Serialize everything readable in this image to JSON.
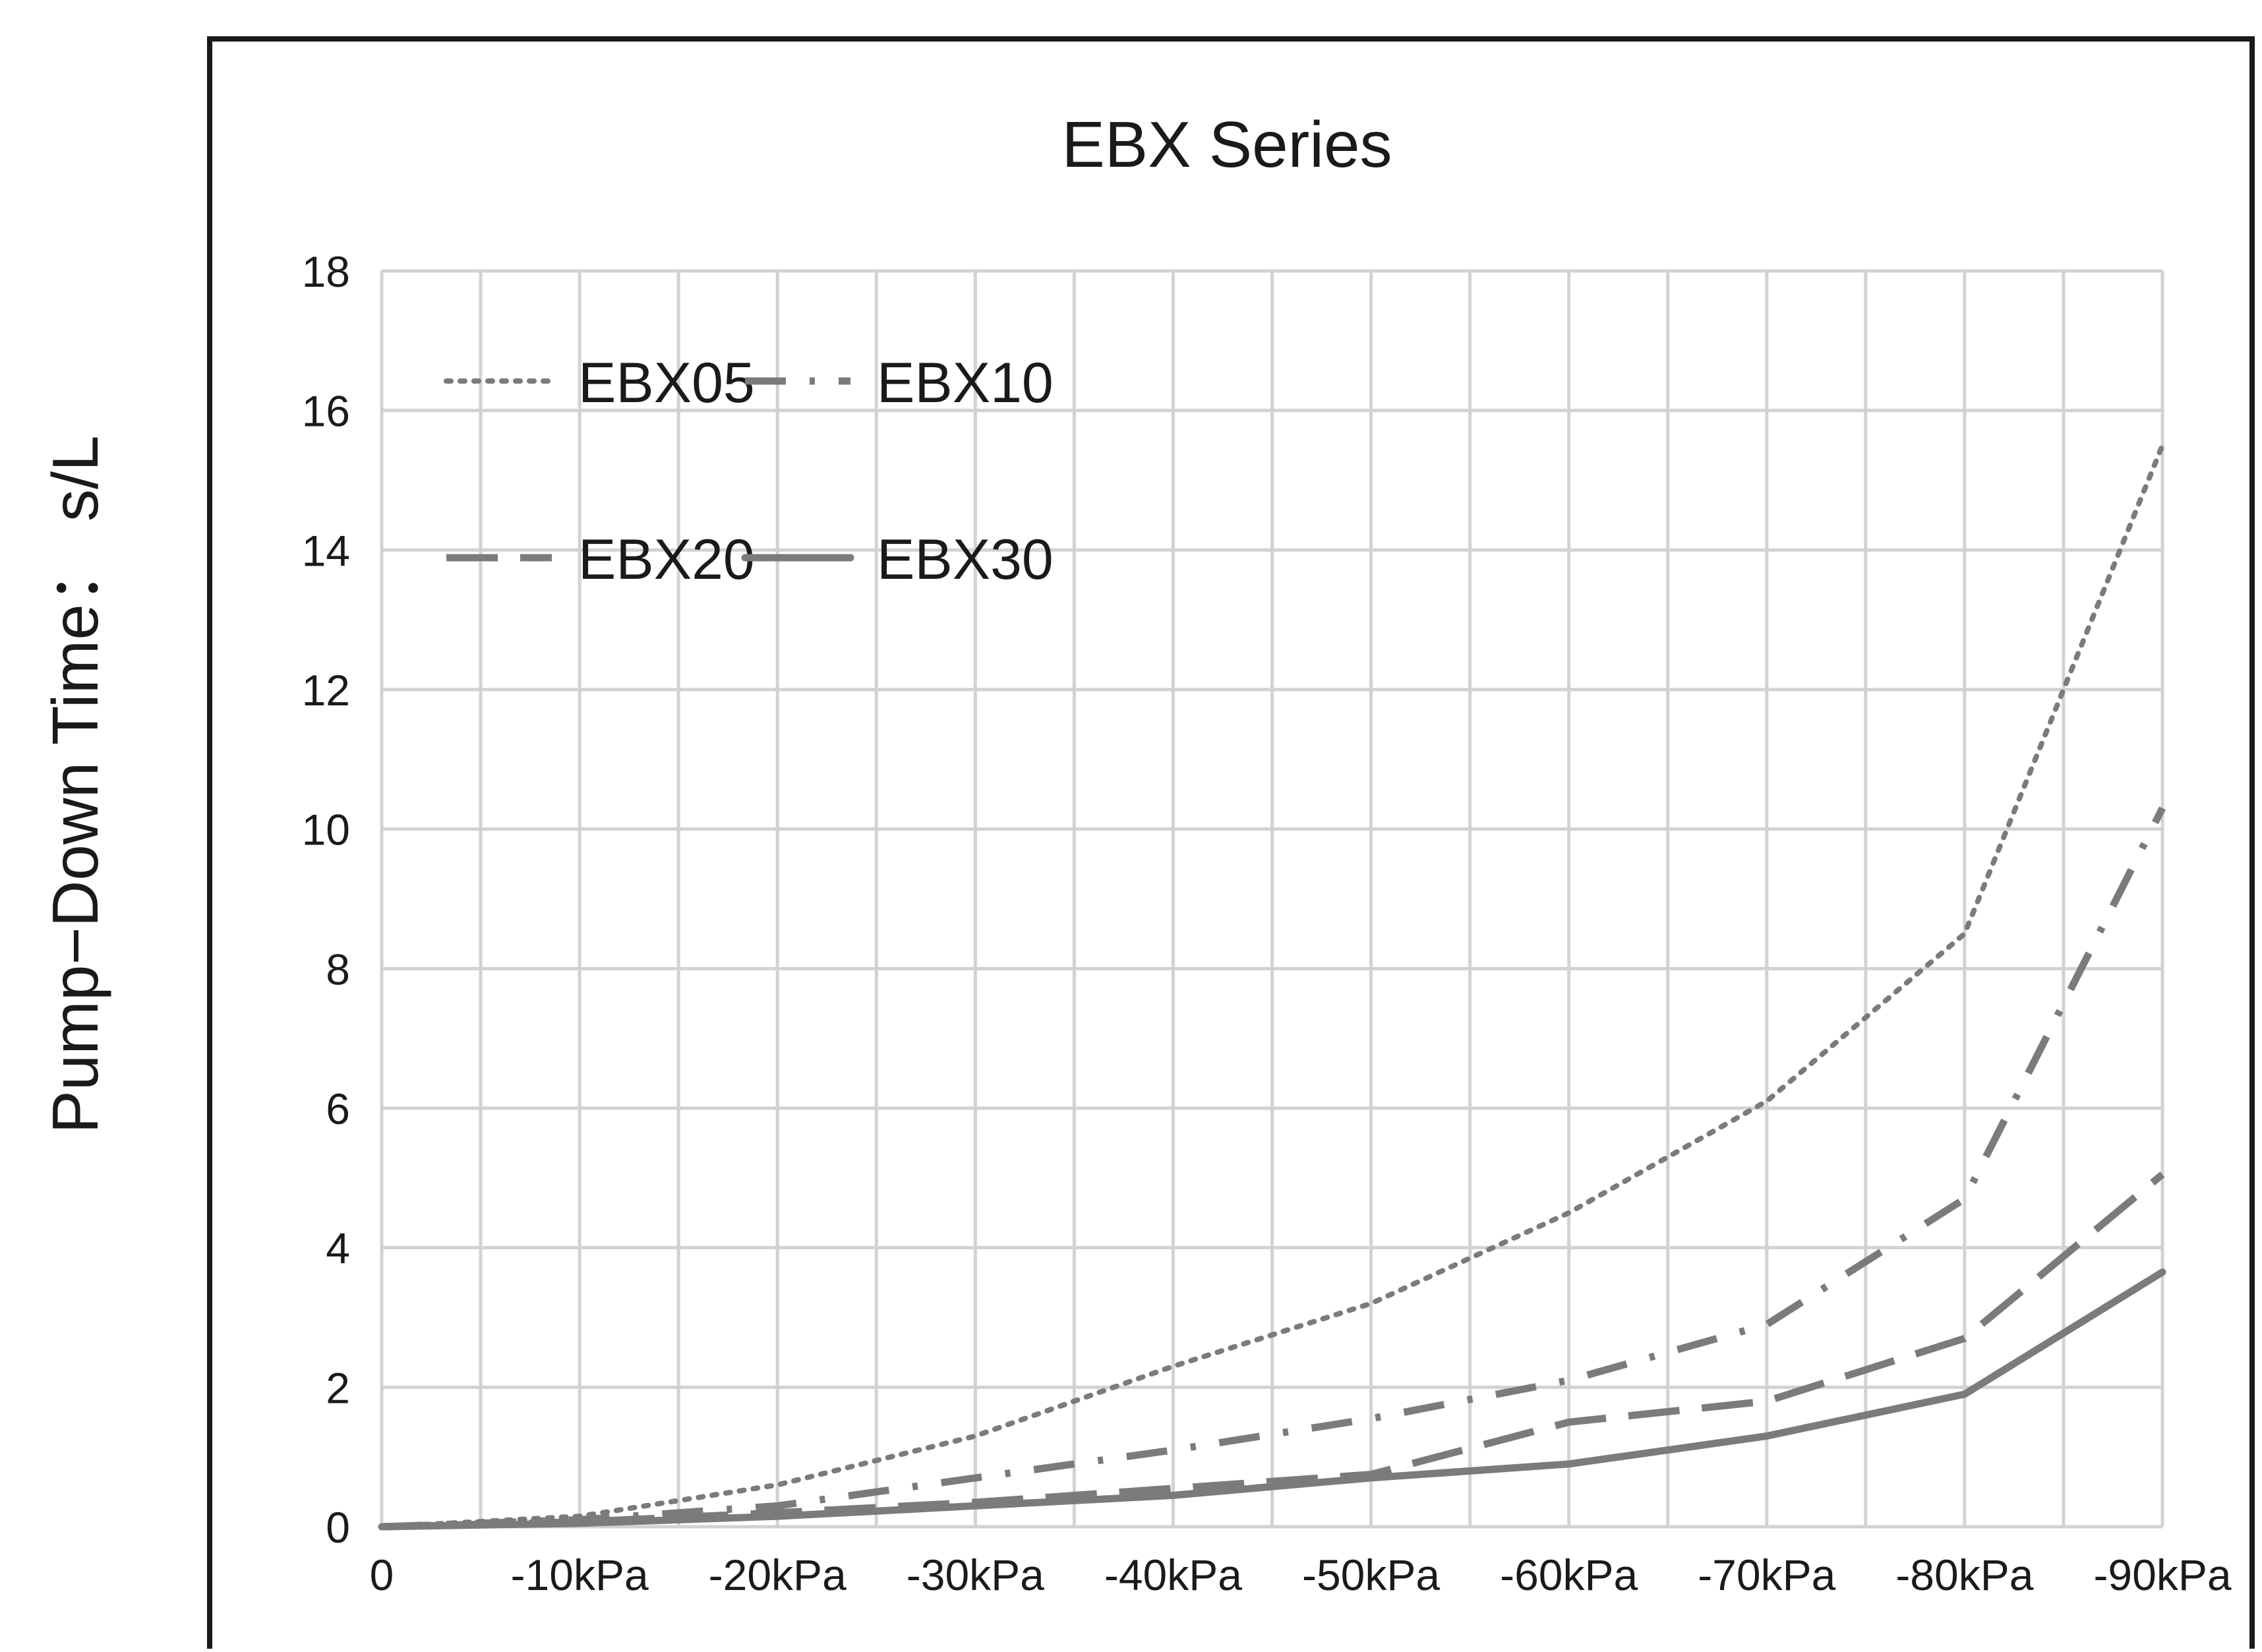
{
  "chart_data": {
    "type": "line",
    "title": "EBX Series",
    "ylabel": "Pump−Down Time： s/L",
    "xlabel": "",
    "categories": [
      "0",
      "-10kPa",
      "-20kPa",
      "-30kPa",
      "-40kPa",
      "-50kPa",
      "-60kPa",
      "-70kPa",
      "-80kPa",
      "-90kPa"
    ],
    "yticks": [
      "0",
      "2",
      "4",
      "6",
      "8",
      "10",
      "12",
      "14",
      "16",
      "18"
    ],
    "ylim": [
      0,
      18
    ],
    "grid": true,
    "legend_position": "top-left",
    "series": [
      {
        "name": "EBX05",
        "style": "dotted",
        "values": [
          0,
          0.15,
          0.6,
          1.3,
          2.3,
          3.2,
          4.5,
          6.1,
          8.5,
          15.5
        ]
      },
      {
        "name": "EBX10",
        "style": "dash-dot",
        "values": [
          0,
          0.1,
          0.3,
          0.7,
          1.1,
          1.55,
          2.1,
          2.9,
          4.7,
          10.3
        ]
      },
      {
        "name": "EBX20",
        "style": "long-dash",
        "values": [
          0,
          0.07,
          0.2,
          0.35,
          0.55,
          0.75,
          1.5,
          1.8,
          2.7,
          5.05
        ]
      },
      {
        "name": "EBX30",
        "style": "solid",
        "values": [
          0,
          0.05,
          0.15,
          0.3,
          0.45,
          0.7,
          0.9,
          1.3,
          1.9,
          3.65
        ]
      }
    ],
    "line_color": "#7b7b7d",
    "grid_color": "#d2d2d2",
    "frame_color": "#1a1a1a"
  }
}
